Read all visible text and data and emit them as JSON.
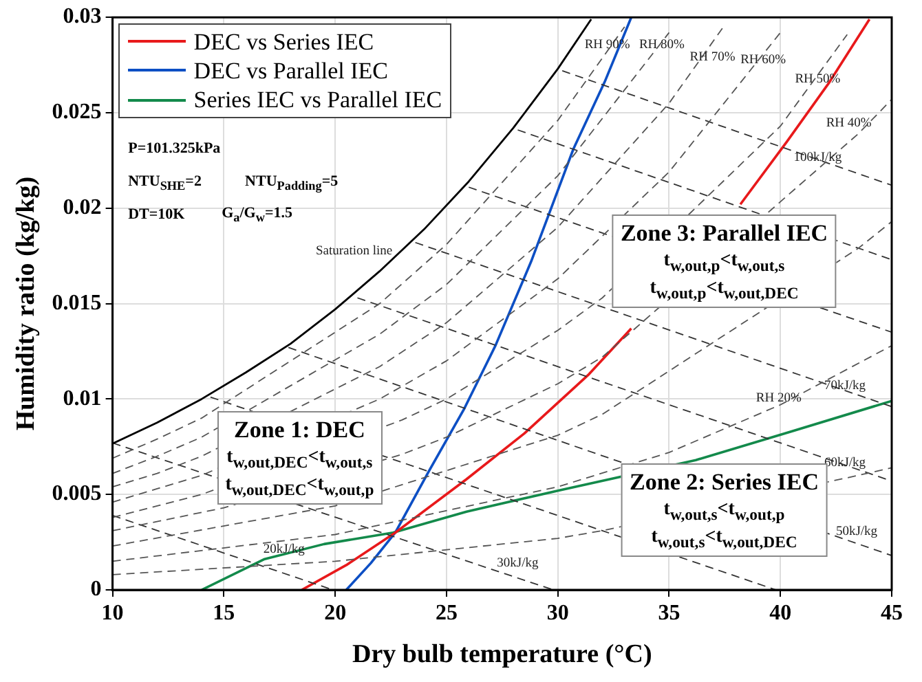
{
  "chart_data": {
    "type": "line",
    "xlabel": "Dry bulb temperature (°C)",
    "ylabel": "Humidity ratio (kg/kg)",
    "xlim": [
      10,
      45
    ],
    "ylim": [
      0,
      0.03
    ],
    "xticks": [
      10,
      15,
      20,
      25,
      30,
      35,
      40,
      45
    ],
    "yticks": [
      0,
      0.005,
      0.01,
      0.015,
      0.02,
      0.025,
      0.03
    ],
    "grid": true,
    "legend": "top left",
    "series": [
      {
        "color": "#000000",
        "line_style": "solid",
        "x": [
          10,
          12,
          14,
          16,
          18,
          20,
          22,
          24,
          26,
          28,
          30,
          31.5
        ],
        "values": [
          0.00766,
          0.00876,
          0.01,
          0.0114,
          0.0129,
          0.0147,
          0.0167,
          0.0189,
          0.0214,
          0.0242,
          0.0273,
          0.0299
        ]
      },
      {
        "color": "#555555",
        "line_style": "dashed",
        "x": [
          10,
          12,
          14,
          22,
          25,
          30,
          33
        ],
        "values": [
          0.0069,
          0.0079,
          0.009,
          0.015,
          0.0181,
          0.0246,
          0.0295
        ]
      },
      {
        "color": "#555555",
        "line_style": "dashed",
        "x": [
          10,
          12,
          14,
          22,
          25,
          30,
          35
        ],
        "values": [
          0.0061,
          0.007,
          0.008,
          0.0134,
          0.016,
          0.0217,
          0.0292
        ]
      },
      {
        "color": "#555555",
        "line_style": "dashed",
        "x": [
          10,
          12,
          14,
          22,
          25,
          30,
          35,
          37.5
        ],
        "values": [
          0.0054,
          0.0061,
          0.007,
          0.0117,
          0.014,
          0.019,
          0.0255,
          0.0296
        ]
      },
      {
        "color": "#555555",
        "line_style": "dashed",
        "x": [
          10,
          12,
          14,
          22,
          25,
          30,
          35,
          40
        ],
        "values": [
          0.0046,
          0.0053,
          0.006,
          0.01,
          0.012,
          0.0163,
          0.0219,
          0.0292
        ]
      },
      {
        "color": "#555555",
        "line_style": "dashed",
        "x": [
          10,
          12,
          14,
          23,
          25,
          30,
          32,
          40,
          43
        ],
        "values": [
          0.0038,
          0.0044,
          0.005,
          0.0089,
          0.01,
          0.0136,
          0.0153,
          0.0243,
          0.0291
        ]
      },
      {
        "color": "#555555",
        "line_style": "dashed",
        "x": [
          10,
          15,
          23,
          25,
          30,
          32,
          43.5,
          45
        ],
        "values": [
          0.0031,
          0.0043,
          0.0071,
          0.008,
          0.0108,
          0.0122,
          0.0239,
          0.0257
        ]
      },
      {
        "color": "#555555",
        "line_style": "dashed",
        "x": [
          10,
          20,
          30,
          32,
          43.5,
          45
        ],
        "values": [
          0.0023,
          0.0044,
          0.0081,
          0.0092,
          0.0179,
          0.0193
        ]
      },
      {
        "color": "#555555",
        "line_style": "dashed",
        "x": [
          10,
          20,
          30,
          35,
          40,
          45
        ],
        "values": [
          0.0015,
          0.0029,
          0.0054,
          0.0072,
          0.0097,
          0.0128
        ]
      },
      {
        "color": "#555555",
        "line_style": "dashed",
        "x": [
          10,
          20,
          30,
          32,
          43.5,
          45
        ],
        "values": [
          0.0008,
          0.0015,
          0.0027,
          0.0031,
          0.006,
          0.0064
        ]
      },
      {
        "color": "#333333",
        "line_style": "dashed",
        "x": [
          10,
          19.9
        ],
        "values": [
          0.0039,
          0
        ]
      },
      {
        "color": "#333333",
        "line_style": "dashed",
        "x": [
          10,
          29.8
        ],
        "values": [
          0.0077,
          0
        ]
      },
      {
        "color": "#333333",
        "line_style": "dashed",
        "x": [
          14.4,
          39.8
        ],
        "values": [
          0.0101,
          0
        ]
      },
      {
        "color": "#333333",
        "line_style": "dashed",
        "x": [
          17.9,
          45
        ],
        "values": [
          0.0127,
          0.0018
        ]
      },
      {
        "color": "#333333",
        "line_style": "dashed",
        "x": [
          21,
          45
        ],
        "values": [
          0.0153,
          0.0057
        ]
      },
      {
        "color": "#333333",
        "line_style": "dashed",
        "x": [
          23.6,
          45
        ],
        "values": [
          0.0182,
          0.0096
        ]
      },
      {
        "color": "#333333",
        "line_style": "dashed",
        "x": [
          26,
          45
        ],
        "values": [
          0.0211,
          0.0135
        ]
      },
      {
        "color": "#333333",
        "line_style": "dashed",
        "x": [
          28.2,
          45
        ],
        "values": [
          0.0241,
          0.0173
        ]
      },
      {
        "color": "#333333",
        "line_style": "dashed",
        "x": [
          30.2,
          45
        ],
        "values": [
          0.0272,
          0.0212
        ]
      },
      {
        "name": "DEC vs Series IEC",
        "color": "#e8191b",
        "line_style": "solid",
        "x": [
          18.5,
          20.5,
          22.7,
          25.9,
          28.5,
          31.4,
          33.3,
          35.5,
          38.2,
          40.3,
          42.2,
          44
        ],
        "values": [
          0,
          0.0013,
          0.003,
          0.0058,
          0.0082,
          0.0113,
          0.0137,
          null,
          0.0202,
          0.0235,
          0.0266,
          0.0299
        ]
      },
      {
        "name": "DEC vs Parallel IEC",
        "color": "#0d4fc4",
        "line_style": "solid",
        "x": [
          20.5,
          21.6,
          22.7,
          24.2,
          25.8,
          27.2,
          28.8,
          30.7,
          32.1,
          33.3
        ],
        "values": [
          0,
          0.0014,
          0.003,
          0.0062,
          0.0095,
          0.0128,
          0.0172,
          0.0231,
          0.0266,
          0.03
        ]
      },
      {
        "name": "Series IEC vs Parallel IEC",
        "color": "#138a4b",
        "line_style": "solid",
        "x": [
          14,
          16.8,
          19.5,
          22.6,
          25.9,
          30,
          36.2,
          40.5,
          45
        ],
        "values": [
          0,
          0.0016,
          0.0024,
          0.003,
          0.0041,
          0.0052,
          0.0068,
          0.0083,
          0.0099
        ]
      }
    ],
    "annotations": [
      "P=101.325kPa",
      "NTU$_{SHE}$=2",
      "NTU$_{Padding}$=5",
      "DT=10K",
      "G$_{a}$/G$_{w}$=1.5",
      "Saturation line",
      "RH 90%",
      "RH 80%",
      "RH 70%",
      "RH 60%",
      "RH 50%",
      "RH 40%",
      "RH 20%",
      "100kJ/kg",
      "70kJ/kg",
      "60kJ/kg",
      "50kJ/kg",
      "30kJ/kg",
      "20kJ/kg",
      "Zone 1: DEC",
      "t$_{w,out,DEC}$<t$_{w,out,s}$",
      "t$_{w,out,DEC}$<t$_{w,out,p}$",
      "Zone 3: Parallel IEC",
      "t$_{w,out,p}$<t$_{w,out,s}$",
      "t$_{w,out,p}$<t$_{w,out,DEC}$",
      "Zone 2: Series IEC",
      "t$_{w,out,s}$<t$_{w,out,p}$",
      "t$_{w,out,s}$<t$_{w,out,DEC}$"
    ]
  }
}
